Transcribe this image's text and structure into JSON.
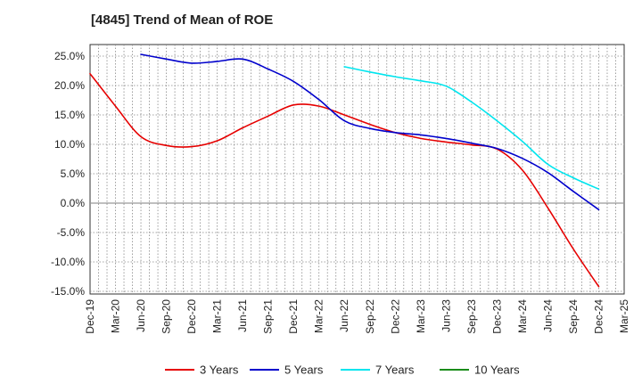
{
  "chart_data": {
    "type": "line",
    "title": "[4845]  Trend of Mean of ROE",
    "xlabel": "",
    "ylabel": "",
    "categories": [
      "Dec-19",
      "Mar-20",
      "Jun-20",
      "Sep-20",
      "Dec-20",
      "Mar-21",
      "Jun-21",
      "Sep-21",
      "Dec-21",
      "Mar-22",
      "Jun-22",
      "Sep-22",
      "Dec-22",
      "Mar-23",
      "Jun-23",
      "Sep-23",
      "Dec-23",
      "Mar-24",
      "Jun-24",
      "Sep-24",
      "Dec-24",
      "Mar-25"
    ],
    "ylim": [
      -15,
      25
    ],
    "yticks": [
      "25.0%",
      "20.0%",
      "15.0%",
      "10.0%",
      "5.0%",
      "0.0%",
      "-5.0%",
      "-10.0%",
      "-15.0%"
    ],
    "ytick_values": [
      25,
      20,
      15,
      10,
      5,
      0,
      -5,
      -10,
      -15
    ],
    "grid": true,
    "legend_position": "bottom",
    "series": [
      {
        "name": "3 Years",
        "color": "#e60000",
        "values": [
          22.0,
          16.5,
          11.3,
          9.8,
          9.6,
          10.6,
          12.8,
          14.8,
          16.7,
          16.5,
          15.0,
          13.4,
          12.0,
          11.0,
          10.4,
          9.9,
          9.2,
          5.6,
          -0.8,
          -7.8,
          -14.2,
          null
        ]
      },
      {
        "name": "5 Years",
        "color": "#0000cc",
        "values": [
          null,
          null,
          25.3,
          24.5,
          23.8,
          24.1,
          24.5,
          22.8,
          20.7,
          17.6,
          14.0,
          12.7,
          12.0,
          11.6,
          11.0,
          10.2,
          9.3,
          7.6,
          5.2,
          2.0,
          -1.1,
          null
        ]
      },
      {
        "name": "7 Years",
        "color": "#00e5ee",
        "values": [
          null,
          null,
          null,
          null,
          null,
          null,
          null,
          null,
          null,
          null,
          23.2,
          22.3,
          21.5,
          20.8,
          19.9,
          17.2,
          14.0,
          10.5,
          6.6,
          4.3,
          2.4,
          null
        ]
      },
      {
        "name": "10 Years",
        "color": "#1a8c1a",
        "values": [
          null,
          null,
          null,
          null,
          null,
          null,
          null,
          null,
          null,
          null,
          null,
          null,
          null,
          null,
          null,
          null,
          null,
          null,
          null,
          null,
          null,
          null
        ]
      }
    ]
  }
}
